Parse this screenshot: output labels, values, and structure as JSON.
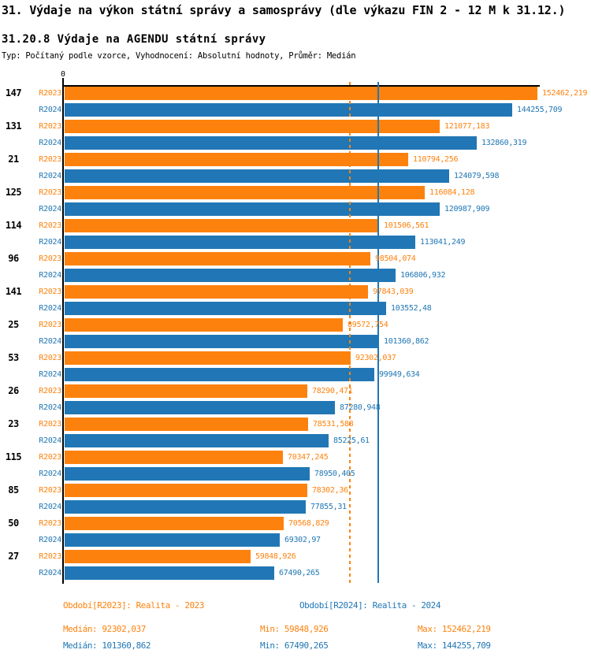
{
  "header": {
    "title": "31. Výdaje na výkon státní správy a samosprávy (dle výkazu FIN 2 - 12 M k 31.12.)",
    "subtitle": "31.20.8 Výdaje na AGENDU státní správy",
    "meta": "Typ: Počítaný podle vzorce, Vyhodnocení: Absolutní hodnoty, Průměr: Medián"
  },
  "colors": {
    "r2023_orange": "#fd820d",
    "r2024_blue": "#2177b5",
    "axis_black": "#000000"
  },
  "chart_data": {
    "type": "bar",
    "orientation": "horizontal",
    "title": "31.20.8 Výdaje na AGENDU státní správy",
    "xlabel": "",
    "ylabel": "",
    "axis": {
      "origin_tick_label": "0",
      "xmin": 0,
      "xmax": 152462.219,
      "grid": "off",
      "reference_lines": "medians only"
    },
    "categories": [
      "147",
      "131",
      "21",
      "125",
      "114",
      "96",
      "141",
      "25",
      "53",
      "26",
      "23",
      "115",
      "85",
      "50",
      "27"
    ],
    "series": [
      {
        "id": "r2023",
        "tick_label": "R2023",
        "legend": "Období[R2023]: Realita - 2023",
        "color": "#fd820d",
        "values": [
          152462.219,
          121077.183,
          110794.256,
          116084.128,
          101506.561,
          98504.074,
          97843.039,
          89572.754,
          92302.037,
          78290.471,
          78531.588,
          70347.245,
          78302.36,
          70568.829,
          59848.926
        ],
        "value_labels": [
          "152462,219",
          "121077,183",
          "110794,256",
          "116084,128",
          "101506,561",
          "98504,074",
          "97843,039",
          "89572,754",
          "92302,037",
          "78290,471",
          "78531,588",
          "70347,245",
          "78302,36",
          "70568,829",
          "59848,926"
        ],
        "median": 92302.037,
        "median_line_style": "dashed"
      },
      {
        "id": "r2024",
        "tick_label": "R2024",
        "legend": "Období[R2024]: Realita - 2024",
        "color": "#2177b5",
        "values": [
          144255.709,
          132860.319,
          124079.598,
          120987.909,
          113041.249,
          106806.932,
          103552.48,
          101360.862,
          99949.634,
          87280.948,
          85225.61,
          78950.405,
          77855.31,
          69302.97,
          67490.265
        ],
        "value_labels": [
          "144255,709",
          "132860,319",
          "124079,598",
          "120987,909",
          "113041,249",
          "106806,932",
          "103552,48",
          "101360,862",
          "99949,634",
          "87280,948",
          "85225,61",
          "78950,405",
          "77855,31",
          "69302,97",
          "67490,265"
        ],
        "median": 101360.862,
        "median_line_style": "solid"
      }
    ]
  },
  "footer": {
    "legend_r2023": "Období[R2023]: Realita - 2023",
    "legend_r2024": "Období[R2024]: Realita - 2024",
    "stats_r2023": {
      "median": "Medián: 92302,037",
      "min": "Min: 59848,926",
      "max": "Max: 152462,219"
    },
    "stats_r2024": {
      "median": "Medián: 101360,862",
      "min": "Min: 67490,265",
      "max": "Max: 144255,709"
    }
  }
}
